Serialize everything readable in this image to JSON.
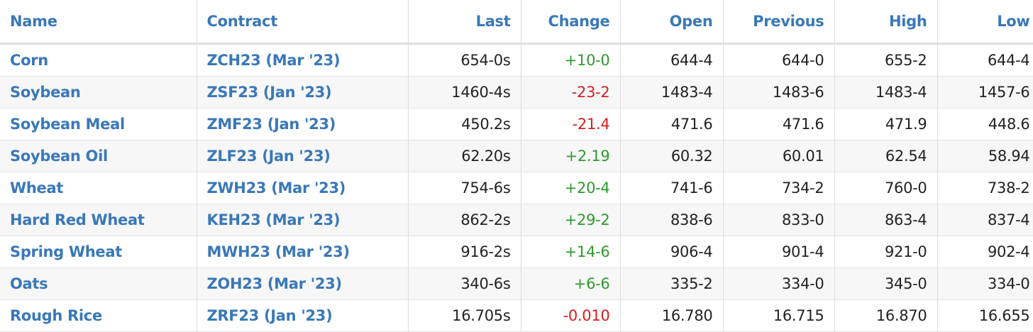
{
  "colors": {
    "link": "#3a78b8",
    "positive": "#2e9a2e",
    "negative": "#d82020"
  },
  "headers": {
    "name": "Name",
    "contract": "Contract",
    "last": "Last",
    "change": "Change",
    "open": "Open",
    "previous": "Previous",
    "high": "High",
    "low": "Low"
  },
  "rows": [
    {
      "name": "Corn",
      "contract": "ZCH23 (Mar '23)",
      "last": "654-0s",
      "change": "+10-0",
      "direction": "up",
      "open": "644-4",
      "previous": "644-0",
      "high": "655-2",
      "low": "644-4"
    },
    {
      "name": "Soybean",
      "contract": "ZSF23 (Jan '23)",
      "last": "1460-4s",
      "change": "-23-2",
      "direction": "down",
      "open": "1483-4",
      "previous": "1483-6",
      "high": "1483-4",
      "low": "1457-6"
    },
    {
      "name": "Soybean Meal",
      "contract": "ZMF23 (Jan '23)",
      "last": "450.2s",
      "change": "-21.4",
      "direction": "down",
      "open": "471.6",
      "previous": "471.6",
      "high": "471.9",
      "low": "448.6"
    },
    {
      "name": "Soybean Oil",
      "contract": "ZLF23 (Jan '23)",
      "last": "62.20s",
      "change": "+2.19",
      "direction": "up",
      "open": "60.32",
      "previous": "60.01",
      "high": "62.54",
      "low": "58.94"
    },
    {
      "name": "Wheat",
      "contract": "ZWH23 (Mar '23)",
      "last": "754-6s",
      "change": "+20-4",
      "direction": "up",
      "open": "741-6",
      "previous": "734-2",
      "high": "760-0",
      "low": "738-2"
    },
    {
      "name": "Hard Red Wheat",
      "contract": "KEH23 (Mar '23)",
      "last": "862-2s",
      "change": "+29-2",
      "direction": "up",
      "open": "838-6",
      "previous": "833-0",
      "high": "863-4",
      "low": "837-4"
    },
    {
      "name": "Spring Wheat",
      "contract": "MWH23 (Mar '23)",
      "last": "916-2s",
      "change": "+14-6",
      "direction": "up",
      "open": "906-4",
      "previous": "901-4",
      "high": "921-0",
      "low": "902-4"
    },
    {
      "name": "Oats",
      "contract": "ZOH23 (Mar '23)",
      "last": "340-6s",
      "change": "+6-6",
      "direction": "up",
      "open": "335-2",
      "previous": "334-0",
      "high": "345-0",
      "low": "334-0"
    },
    {
      "name": "Rough Rice",
      "contract": "ZRF23 (Jan '23)",
      "last": "16.705s",
      "change": "-0.010",
      "direction": "down",
      "open": "16.780",
      "previous": "16.715",
      "high": "16.870",
      "low": "16.655"
    }
  ]
}
